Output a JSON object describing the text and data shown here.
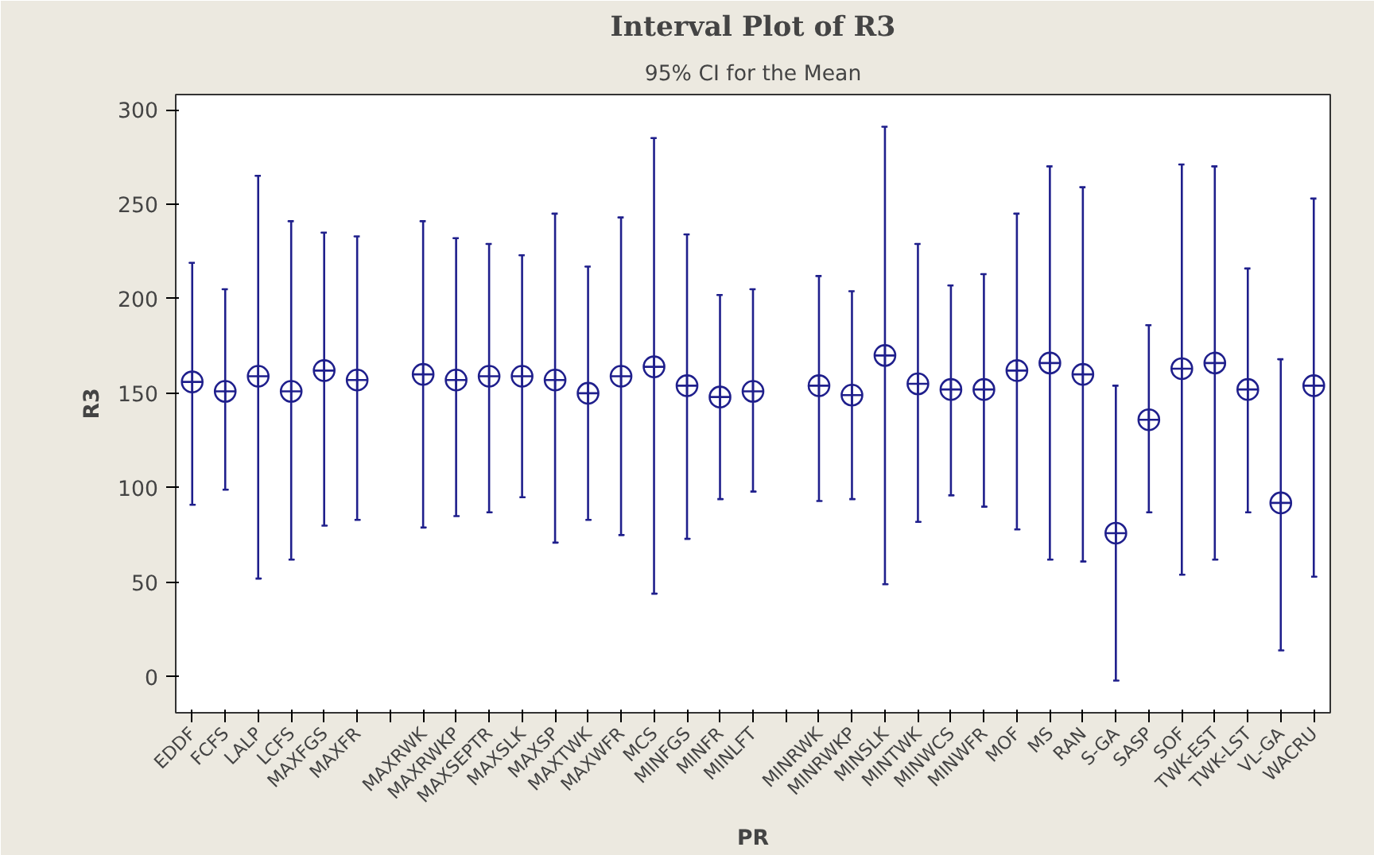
{
  "chart_data": {
    "type": "scatter",
    "title": "Interval Plot of R3",
    "subtitle": "95% CI for the Mean",
    "xlabel": "PR",
    "ylabel": "R3",
    "categories": [
      "EDDF",
      "FCFS",
      "LALP",
      "LCFS",
      "MAXFGS",
      "MAXFR",
      null,
      "MAXRWK",
      "MAXRWKP",
      "MAXSEPTR",
      "MAXSLK",
      "MAXSP",
      "MAXTWK",
      "MAXWFR",
      "MCS",
      "MINFGS",
      "MINFR",
      "MINLFT",
      null,
      "MINRWK",
      "MINRWKP",
      "MINSLK",
      "MINTWK",
      "MINWCS",
      "MINWFR",
      "MOF",
      "MS",
      "RAN",
      "S-GA",
      "SASP",
      "SOF",
      "TWK-EST",
      "TWK-LST",
      "VL-GA",
      "WACRU"
    ],
    "series": [
      {
        "color": "#1f1f8c",
        "values": [
          156,
          151,
          159,
          151,
          162,
          157,
          null,
          160,
          157,
          159,
          159,
          157,
          150,
          159,
          164,
          154,
          148,
          151,
          null,
          154,
          149,
          170,
          155,
          152,
          152,
          162,
          166,
          160,
          76,
          136,
          163,
          166,
          152,
          92,
          154
        ],
        "errors": [
          [
            91,
            219
          ],
          [
            99,
            205
          ],
          [
            52,
            265
          ],
          [
            62,
            241
          ],
          [
            80,
            235
          ],
          [
            83,
            233
          ],
          null,
          [
            79,
            241
          ],
          [
            85,
            232
          ],
          [
            87,
            229
          ],
          [
            95,
            223
          ],
          [
            71,
            245
          ],
          [
            83,
            217
          ],
          [
            75,
            243
          ],
          [
            44,
            285
          ],
          [
            73,
            234
          ],
          [
            94,
            202
          ],
          [
            98,
            205
          ],
          null,
          [
            93,
            212
          ],
          [
            94,
            204
          ],
          [
            49,
            291
          ],
          [
            82,
            229
          ],
          [
            96,
            207
          ],
          [
            90,
            213
          ],
          [
            78,
            245
          ],
          [
            62,
            270
          ],
          [
            61,
            259
          ],
          [
            -2,
            154
          ],
          [
            87,
            186
          ],
          [
            54,
            271
          ],
          [
            62,
            270
          ],
          [
            87,
            216
          ],
          [
            14,
            168
          ],
          [
            53,
            253
          ]
        ]
      }
    ],
    "ylim": [
      -19,
      308
    ],
    "yticks": [
      0,
      50,
      100,
      150,
      200,
      250,
      300
    ],
    "grid": false,
    "marker": "circle"
  }
}
